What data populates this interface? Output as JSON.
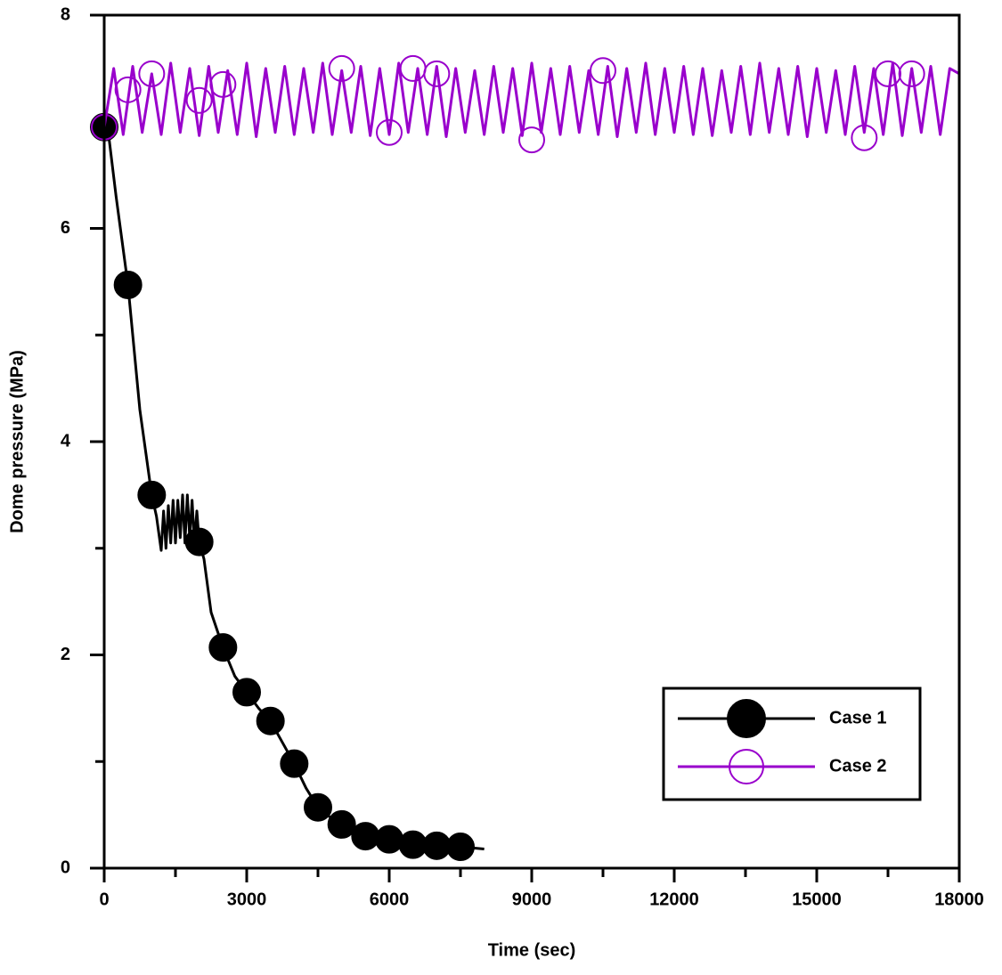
{
  "chart_data": {
    "type": "line",
    "xlabel": "Time (sec)",
    "ylabel": "Dome pressure (MPa)",
    "xlim": [
      0,
      18000
    ],
    "xticks": [
      0,
      3000,
      6000,
      9000,
      12000,
      15000,
      18000
    ],
    "xminorticks": [
      1500,
      4500,
      7500,
      10500,
      13500,
      16500
    ],
    "ylim": [
      0,
      8
    ],
    "yticks": [
      0,
      2,
      4,
      6,
      8
    ],
    "yminorticks": [
      1,
      3,
      5,
      7
    ],
    "legend": "lower-right",
    "series": [
      {
        "name": "Case 1",
        "color": "#000000",
        "marker_filled": true,
        "x": [
          0,
          100,
          250,
          500,
          750,
          1000,
          1100,
          1200,
          1250,
          1300,
          1350,
          1400,
          1450,
          1500,
          1550,
          1600,
          1650,
          1700,
          1750,
          1800,
          1850,
          1900,
          1950,
          2000,
          2100,
          2250,
          2500,
          2750,
          3000,
          3250,
          3500,
          3750,
          4000,
          4250,
          4500,
          4750,
          5000,
          5250,
          5500,
          5750,
          6000,
          6250,
          6500,
          6750,
          7000,
          7250,
          7500,
          7750,
          8000
        ],
        "values": [
          6.95,
          6.85,
          6.3,
          5.47,
          4.3,
          3.5,
          3.3,
          2.98,
          3.35,
          3.0,
          3.4,
          3.05,
          3.45,
          3.05,
          3.45,
          3.1,
          3.5,
          3.05,
          3.5,
          3.1,
          3.45,
          3.05,
          3.35,
          3.06,
          2.9,
          2.4,
          2.07,
          1.8,
          1.65,
          1.5,
          1.38,
          1.18,
          0.98,
          0.75,
          0.57,
          0.48,
          0.41,
          0.35,
          0.3,
          0.28,
          0.27,
          0.24,
          0.22,
          0.21,
          0.21,
          0.2,
          0.2,
          0.19,
          0.18
        ],
        "marker_x": [
          0,
          500,
          1000,
          2000,
          2500,
          3000,
          3500,
          4000,
          4500,
          5000,
          5500,
          6000,
          6500,
          7000,
          7500
        ],
        "marker_values": [
          6.95,
          5.47,
          3.5,
          3.06,
          2.07,
          1.65,
          1.38,
          0.98,
          0.57,
          0.41,
          0.3,
          0.27,
          0.22,
          0.21,
          0.2
        ]
      },
      {
        "name": "Case 2",
        "color": "#9900cc",
        "marker_filled": false,
        "x": [
          0,
          200,
          400,
          600,
          800,
          1000,
          1200,
          1400,
          1600,
          1800,
          2000,
          2200,
          2400,
          2600,
          2800,
          3000,
          3200,
          3400,
          3600,
          3800,
          4000,
          4200,
          4400,
          4600,
          4800,
          5000,
          5200,
          5400,
          5600,
          5800,
          6000,
          6200,
          6400,
          6600,
          6800,
          7000,
          7200,
          7400,
          7600,
          7800,
          8000,
          8200,
          8400,
          8600,
          8800,
          9000,
          9200,
          9400,
          9600,
          9800,
          10000,
          10200,
          10400,
          10600,
          10800,
          11000,
          11200,
          11400,
          11600,
          11800,
          12000,
          12200,
          12400,
          12600,
          12800,
          13000,
          13200,
          13400,
          13600,
          13800,
          14000,
          14200,
          14400,
          14600,
          14800,
          15000,
          15200,
          15400,
          15600,
          15800,
          16000,
          16200,
          16400,
          16600,
          16800,
          17000,
          17200,
          17400,
          17600,
          17800,
          18000
        ],
        "values": [
          6.95,
          7.5,
          6.88,
          7.52,
          6.9,
          7.45,
          6.88,
          7.55,
          6.9,
          7.5,
          6.87,
          7.52,
          6.9,
          7.48,
          6.88,
          7.55,
          6.86,
          7.5,
          6.9,
          7.52,
          6.88,
          7.5,
          6.9,
          7.55,
          6.88,
          7.48,
          6.9,
          7.52,
          6.87,
          7.5,
          6.88,
          7.55,
          6.9,
          7.5,
          6.88,
          7.52,
          6.86,
          7.5,
          6.9,
          7.48,
          6.88,
          7.52,
          6.9,
          7.5,
          6.87,
          7.55,
          6.9,
          7.5,
          6.88,
          7.52,
          6.9,
          7.48,
          6.88,
          7.52,
          6.86,
          7.5,
          6.9,
          7.55,
          6.88,
          7.5,
          6.9,
          7.52,
          6.88,
          7.5,
          6.87,
          7.48,
          6.9,
          7.52,
          6.88,
          7.55,
          6.9,
          7.5,
          6.88,
          7.52,
          6.86,
          7.5,
          6.9,
          7.48,
          6.88,
          7.52,
          6.9,
          7.5,
          6.88,
          7.55,
          6.87,
          7.5,
          6.9,
          7.52,
          6.88,
          7.5,
          7.45
        ],
        "marker_x": [
          0,
          500,
          1000,
          2000,
          2500,
          5000,
          6000,
          6500,
          7000,
          9000,
          10500,
          16000,
          16500,
          17000
        ],
        "marker_values": [
          6.95,
          7.3,
          7.45,
          7.2,
          7.35,
          7.5,
          6.9,
          7.5,
          7.45,
          6.83,
          7.48,
          6.85,
          7.45,
          7.45
        ]
      }
    ]
  }
}
